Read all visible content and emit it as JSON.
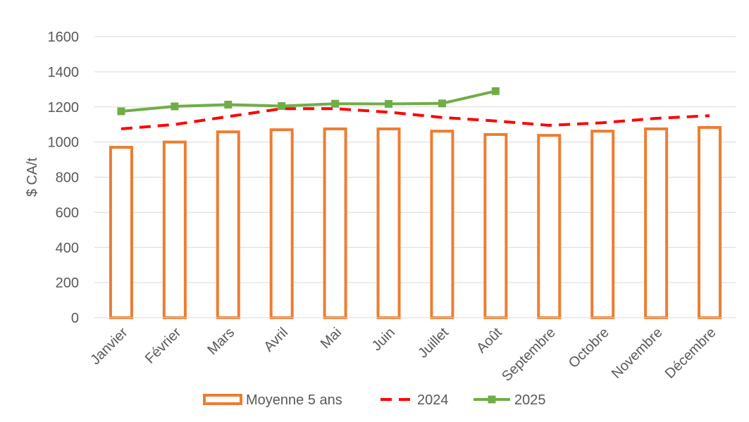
{
  "chart_data": {
    "type": "bar",
    "title": "",
    "xlabel": "",
    "ylabel": "$ CA/t",
    "ylim": [
      0,
      1600
    ],
    "yticks": [
      0,
      200,
      400,
      600,
      800,
      1000,
      1200,
      1400,
      1600
    ],
    "grid": true,
    "legend_position": "bottom",
    "categories": [
      "Janvier",
      "Février",
      "Mars",
      "Avril",
      "Mai",
      "Juin",
      "Juillet",
      "Août",
      "Septembre",
      "Octobre",
      "Novembre",
      "Décembre"
    ],
    "series": [
      {
        "name": "Moyenne 5 ans",
        "type": "bar",
        "style": "hollow",
        "color": "#ED7D31",
        "values": [
          970,
          1000,
          1058,
          1070,
          1075,
          1075,
          1062,
          1043,
          1038,
          1062,
          1075,
          1083
        ]
      },
      {
        "name": "2024",
        "type": "line",
        "style": "dashed",
        "color": "#FF0000",
        "values": [
          1075,
          1100,
          1145,
          1190,
          1190,
          1170,
          1140,
          1120,
          1095,
          1110,
          1135,
          1150
        ]
      },
      {
        "name": "2025",
        "type": "line",
        "style": "solid-square-markers",
        "color": "#70AD47",
        "values": [
          1175,
          1203,
          1213,
          1205,
          1218,
          1217,
          1220,
          1290,
          null,
          null,
          null,
          null
        ]
      }
    ]
  }
}
